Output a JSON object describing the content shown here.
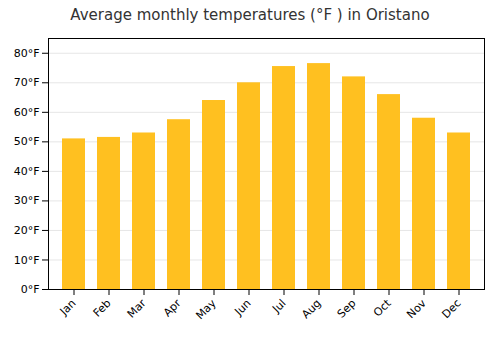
{
  "chart_data": {
    "type": "bar",
    "title": "Average monthly temperatures (°F ) in Oristano",
    "categories": [
      "Jan",
      "Feb",
      "Mar",
      "Apr",
      "May",
      "Jun",
      "Jul",
      "Aug",
      "Sep",
      "Oct",
      "Nov",
      "Dec"
    ],
    "values": [
      51.0,
      51.5,
      53.0,
      57.5,
      64.0,
      70.0,
      75.5,
      76.5,
      72.0,
      66.0,
      58.0,
      53.0
    ],
    "color": "#FFC020",
    "ylim": [
      0,
      85
    ],
    "yticks": [
      {
        "value": 0,
        "label": "0°F"
      },
      {
        "value": 10,
        "label": "10°F"
      },
      {
        "value": 20,
        "label": "20°F"
      },
      {
        "value": 30,
        "label": "30°F"
      },
      {
        "value": 40,
        "label": "40°F"
      },
      {
        "value": 50,
        "label": "50°F"
      },
      {
        "value": 60,
        "label": "60°F"
      },
      {
        "value": 70,
        "label": "70°F"
      },
      {
        "value": 80,
        "label": "80°F"
      }
    ],
    "grid": true
  }
}
